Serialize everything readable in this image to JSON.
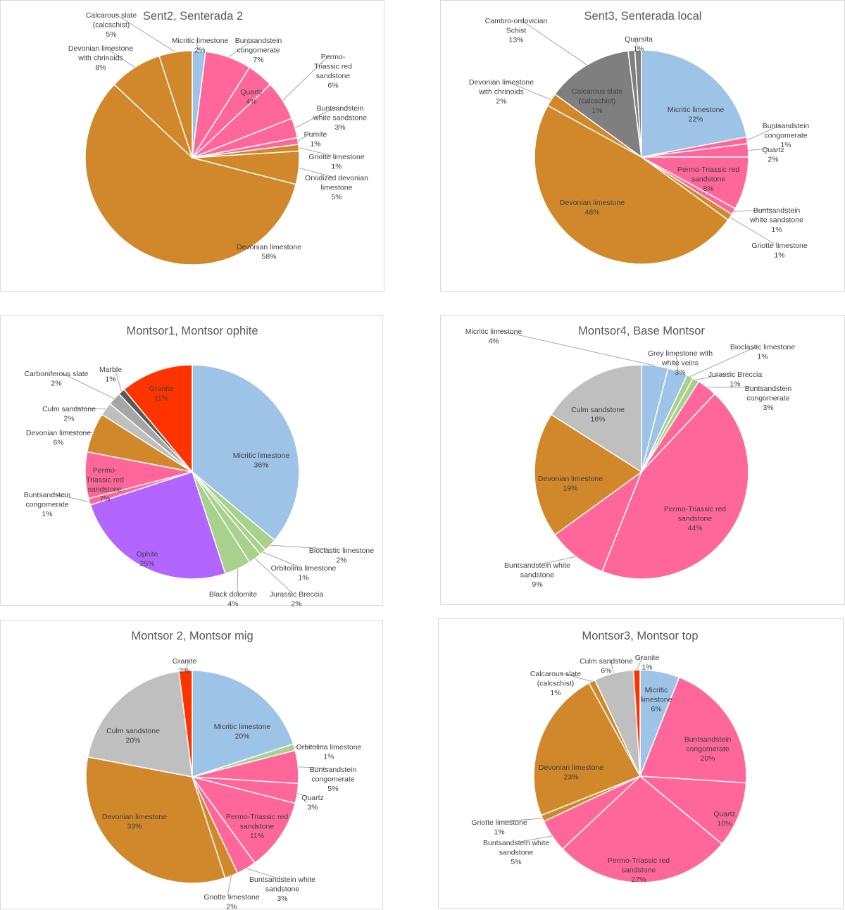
{
  "colors": {
    "micritic": "#9dc3e6",
    "pink": "#ff6699",
    "devonian": "#d0882a",
    "slate": "#7f7f7f",
    "culm": "#bfbfbf",
    "granite": "#ff3300",
    "ophite": "#b266ff",
    "green": "#a9d18e"
  },
  "chart_data": [
    {
      "type": "pie",
      "title": "Sent2, Senterada 2",
      "slices": [
        {
          "label": "Micritic limestone",
          "value": 2,
          "display": "2%",
          "color": "#9dc3e6"
        },
        {
          "label": "Buntsandstein congomerate",
          "value": 7,
          "display": "7%",
          "color": "#ff6699"
        },
        {
          "label": "Quartz",
          "value": 4,
          "display": "4%",
          "color": "#ff6699"
        },
        {
          "label": "Permo-Triassic red sandstone",
          "value": 6,
          "display": "6%",
          "color": "#ff6699"
        },
        {
          "label": "Buntsandstein white sandstone",
          "value": 3,
          "display": "3%",
          "color": "#ff6699"
        },
        {
          "label": "Pumite",
          "value": 1,
          "display": "1%",
          "color": "#ff6699"
        },
        {
          "label": "Griotte limestone",
          "value": 1,
          "display": "1%",
          "color": "#d0882a"
        },
        {
          "label": "Orxidized devonian limestone",
          "value": 5,
          "display": "5%",
          "color": "#d0882a"
        },
        {
          "label": "Devonian limestone",
          "value": 58,
          "display": "58%",
          "color": "#d0882a"
        },
        {
          "label": "Devonian limestone with chrinoids",
          "value": 8,
          "display": "8%",
          "color": "#d0882a"
        },
        {
          "label": "Calcarous slate (calcschist)",
          "value": 5,
          "display": "5%",
          "color": "#d0882a"
        }
      ]
    },
    {
      "type": "pie",
      "title": "Sent3, Senterada local",
      "slices": [
        {
          "label": "Micritic limestone",
          "value": 22,
          "display": "22%",
          "color": "#9dc3e6"
        },
        {
          "label": "Buntsandstein congomerate",
          "value": 1,
          "display": "1%",
          "color": "#ff6699"
        },
        {
          "label": "Quartz",
          "value": 2,
          "display": "2%",
          "color": "#ff6699"
        },
        {
          "label": "Permo-Triassic red sandstone",
          "value": 8,
          "display": "8%",
          "color": "#ff6699"
        },
        {
          "label": "Buntsandstein white sandstone",
          "value": 1,
          "display": "1%",
          "color": "#ff6699"
        },
        {
          "label": "Griotte limestone",
          "value": 1,
          "display": "1%",
          "color": "#d0882a"
        },
        {
          "label": "Devonian limestone",
          "value": 48,
          "display": "48%",
          "color": "#d0882a"
        },
        {
          "label": "Devonian limestone with chrinoids",
          "value": 2,
          "display": "2%",
          "color": "#d0882a"
        },
        {
          "label": "Calcarous slate (calcschist)",
          "value": 13,
          "display": "13%",
          "color": "#7f7f7f"
        },
        {
          "label": "Cambro-ordovician Schist",
          "value": 1,
          "display": "1%",
          "color": "#7f7f7f"
        },
        {
          "label": "Quarsita",
          "value": 1,
          "display": "1%",
          "color": "#7f7f7f"
        }
      ]
    },
    {
      "type": "pie",
      "title": "Montsor1, Montsor ophite",
      "slices": [
        {
          "label": "Micritic limestone",
          "value": 36,
          "display": "36%",
          "color": "#9dc3e6"
        },
        {
          "label": "Bioclastic limestone",
          "value": 2,
          "display": "2%",
          "color": "#a9d18e"
        },
        {
          "label": "Orbitolina limestone",
          "value": 1,
          "display": "1%",
          "color": "#a9d18e"
        },
        {
          "label": "Jurassic Breccia",
          "value": 2,
          "display": "2%",
          "color": "#a9d18e"
        },
        {
          "label": "Black dolomite",
          "value": 4,
          "display": "4%",
          "color": "#a9d18e"
        },
        {
          "label": "Ophite",
          "value": 25,
          "display": "25%",
          "color": "#b266ff"
        },
        {
          "label": "Buntsandstein congomerate",
          "value": 1,
          "display": "1%",
          "color": "#ff6699"
        },
        {
          "label": "Permo-Triassic red sandstone",
          "value": 7,
          "display": "7%",
          "color": "#ff6699"
        },
        {
          "label": "Devonian limestone",
          "value": 6,
          "display": "6%",
          "color": "#d0882a"
        },
        {
          "label": "Culm sandstone",
          "value": 2,
          "display": "2%",
          "color": "#bfbfbf"
        },
        {
          "label": "Carboniferous slate",
          "value": 2,
          "display": "2%",
          "color": "#a6a6a6"
        },
        {
          "label": "Marble",
          "value": 1,
          "display": "1%",
          "color": "#595959"
        },
        {
          "label": "Granite",
          "value": 11,
          "display": "11%",
          "color": "#ff3300"
        }
      ]
    },
    {
      "type": "pie",
      "title": "Montsor4, Base Montsor",
      "slices": [
        {
          "label": "Micritic limestone",
          "value": 4,
          "display": "4%",
          "color": "#9dc3e6"
        },
        {
          "label": "Grey limestone with white veins",
          "value": 3,
          "display": "3%",
          "color": "#9dc3e6"
        },
        {
          "label": "Bioclastic limestone",
          "value": 1,
          "display": "1%",
          "color": "#a9d18e"
        },
        {
          "label": "Jurassic Breccia",
          "value": 1,
          "display": "1%",
          "color": "#a9d18e"
        },
        {
          "label": "Buntsandstein congomerate",
          "value": 3,
          "display": "3%",
          "color": "#ff6699"
        },
        {
          "label": "Permo-Triassic red sandstone",
          "value": 44,
          "display": "44%",
          "color": "#ff6699"
        },
        {
          "label": "Buntsandstein white sandstone",
          "value": 9,
          "display": "9%",
          "color": "#ff6699"
        },
        {
          "label": "Devonian limestone",
          "value": 19,
          "display": "19%",
          "color": "#d0882a"
        },
        {
          "label": "Culm sandstone",
          "value": 16,
          "display": "16%",
          "color": "#bfbfbf"
        }
      ]
    },
    {
      "type": "pie",
      "title": "Montsor 2, Montsor mig",
      "slices": [
        {
          "label": "Micritic limestone",
          "value": 20,
          "display": "20%",
          "color": "#9dc3e6"
        },
        {
          "label": "Orbitolina limestone",
          "value": 1,
          "display": "1%",
          "color": "#a9d18e"
        },
        {
          "label": "Buntsandstein congomerate",
          "value": 5,
          "display": "5%",
          "color": "#ff6699"
        },
        {
          "label": "Quartz",
          "value": 3,
          "display": "3%",
          "color": "#ff6699"
        },
        {
          "label": "Permo-Triassic red sandstone",
          "value": 11,
          "display": "11%",
          "color": "#ff6699"
        },
        {
          "label": "Buntsandstein white sandstone",
          "value": 3,
          "display": "3%",
          "color": "#ff6699"
        },
        {
          "label": "Griotte limestone",
          "value": 2,
          "display": "2%",
          "color": "#d0882a"
        },
        {
          "label": "Devonian limestone",
          "value": 33,
          "display": "33%",
          "color": "#d0882a"
        },
        {
          "label": "Culm sandstone",
          "value": 20,
          "display": "20%",
          "color": "#bfbfbf"
        },
        {
          "label": "Granite",
          "value": 2,
          "display": "2%",
          "color": "#ff3300"
        }
      ]
    },
    {
      "type": "pie",
      "title": "Montsor3, Montsor top",
      "slices": [
        {
          "label": "Micritic limestone",
          "value": 6,
          "display": "6%",
          "color": "#9dc3e6"
        },
        {
          "label": "Buntsandstein congomerate",
          "value": 20,
          "display": "20%",
          "color": "#ff6699"
        },
        {
          "label": "Quartz",
          "value": 10,
          "display": "10%",
          "color": "#ff6699"
        },
        {
          "label": "Permo-Triassic red sandstone",
          "value": 27,
          "display": "27%",
          "color": "#ff6699"
        },
        {
          "label": "Buntsandstein white sandstone",
          "value": 5,
          "display": "5%",
          "color": "#ff6699"
        },
        {
          "label": "Griotte limestone",
          "value": 1,
          "display": "1%",
          "color": "#d0882a"
        },
        {
          "label": "Devonian limestone",
          "value": 23,
          "display": "23%",
          "color": "#d0882a"
        },
        {
          "label": "Calcarous slate (calcschist)",
          "value": 1,
          "display": "1%",
          "color": "#d0882a"
        },
        {
          "label": "Culm sandstone",
          "value": 6,
          "display": "6%",
          "color": "#bfbfbf"
        },
        {
          "label": "Granite",
          "value": 1,
          "display": "1%",
          "color": "#ff3300"
        }
      ]
    }
  ]
}
